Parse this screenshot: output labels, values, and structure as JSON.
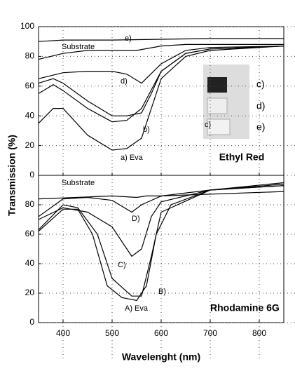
{
  "ylabel": "Transmission (%)",
  "chart_data": [
    {
      "type": "line",
      "xlim": [
        350,
        850
      ],
      "ylim": [
        0,
        100
      ],
      "xticks": [
        400,
        500,
        600,
        700,
        800
      ],
      "yticks": [
        0,
        20,
        40,
        60,
        80,
        100
      ],
      "grid": true,
      "annotation": "Ethyl Red",
      "inset_labels": [
        "c)",
        "d)",
        "e)"
      ],
      "series": [
        {
          "name": "Substrate",
          "color": "#000",
          "x": [
            350,
            400,
            500,
            600,
            700,
            850
          ],
          "values": [
            90,
            91,
            91,
            91.5,
            92,
            92
          ]
        },
        {
          "name": "e)",
          "color": "#000",
          "x": [
            350,
            400,
            450,
            500,
            550,
            600,
            650,
            700,
            850
          ],
          "values": [
            78,
            82,
            84,
            84,
            84,
            87,
            88,
            88,
            88
          ]
        },
        {
          "name": "d)",
          "color": "#000",
          "x": [
            350,
            400,
            450,
            500,
            530,
            560,
            600,
            650,
            700,
            850
          ],
          "values": [
            65,
            69,
            70,
            70,
            68,
            62,
            75,
            84,
            86,
            87
          ]
        },
        {
          "name": "c)",
          "color": "#000",
          "x": [
            350,
            380,
            400,
            450,
            500,
            530,
            560,
            580,
            600,
            650,
            700,
            850
          ],
          "values": [
            62,
            65,
            62,
            50,
            40,
            40,
            42,
            55,
            70,
            82,
            85,
            87
          ]
        },
        {
          "name": "b)",
          "color": "#000",
          "x": [
            350,
            380,
            400,
            450,
            500,
            530,
            560,
            600,
            650,
            700,
            850
          ],
          "values": [
            55,
            61,
            57,
            45,
            36,
            37,
            45,
            70,
            82,
            85,
            87
          ]
        },
        {
          "name": "a) Eva",
          "color": "#000",
          "x": [
            350,
            380,
            400,
            450,
            500,
            530,
            560,
            580,
            600,
            650,
            700,
            850
          ],
          "values": [
            35,
            45,
            45,
            27,
            17,
            18,
            25,
            45,
            65,
            80,
            84,
            87
          ]
        }
      ]
    },
    {
      "type": "line",
      "xlim": [
        350,
        850
      ],
      "ylim": [
        0,
        100
      ],
      "xticks": [
        400,
        500,
        600,
        700,
        800
      ],
      "yticks": [
        0,
        20,
        40,
        60,
        80
      ],
      "grid": true,
      "annotation": "Rhodamine 6G",
      "xlabel": "Wavelenght (nm)",
      "series": [
        {
          "name": "Substrate",
          "color": "#000",
          "x": [
            350,
            500,
            550,
            570,
            600,
            850
          ],
          "values": [
            84,
            86,
            85,
            86,
            86,
            89
          ]
        },
        {
          "name": "D)",
          "color": "#000",
          "x": [
            350,
            400,
            450,
            500,
            540,
            560,
            600,
            700,
            850
          ],
          "values": [
            72,
            84,
            85,
            83,
            75,
            80,
            86,
            90,
            93
          ]
        },
        {
          "name": "C)",
          "color": "#000",
          "x": [
            350,
            400,
            450,
            500,
            540,
            560,
            580,
            600,
            700,
            850
          ],
          "values": [
            70,
            78,
            75,
            65,
            45,
            50,
            72,
            82,
            90,
            93
          ]
        },
        {
          "name": "B)",
          "color": "#000",
          "x": [
            350,
            400,
            430,
            470,
            500,
            540,
            560,
            580,
            600,
            700,
            850
          ],
          "values": [
            63,
            80,
            78,
            60,
            30,
            18,
            18,
            45,
            75,
            90,
            94
          ]
        },
        {
          "name": "A) Eva",
          "color": "#000",
          "x": [
            350,
            400,
            430,
            460,
            490,
            520,
            550,
            570,
            590,
            620,
            700,
            850
          ],
          "values": [
            62,
            77,
            77,
            60,
            25,
            17,
            15,
            25,
            60,
            80,
            90,
            95
          ]
        }
      ]
    }
  ]
}
